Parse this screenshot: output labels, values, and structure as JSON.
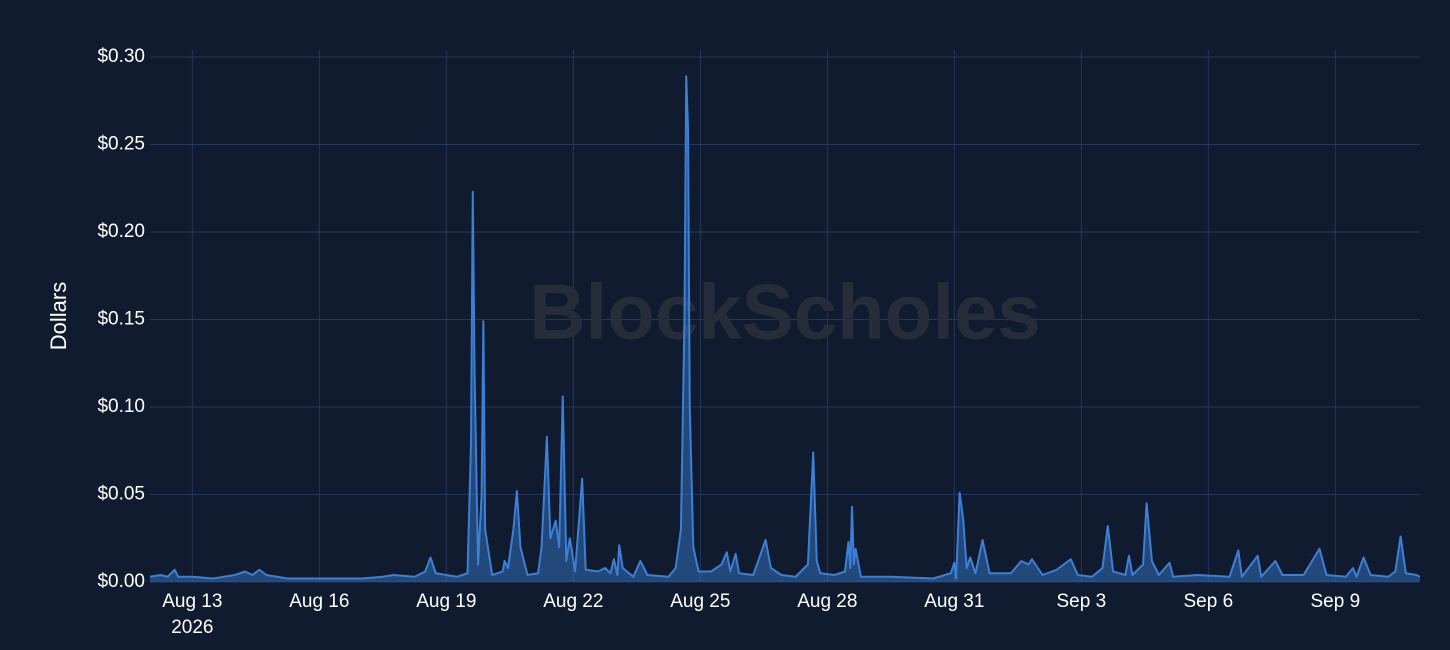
{
  "chart_data": {
    "type": "area",
    "watermark": "BlockScholes",
    "y_label": "Dollars",
    "color": "#3b80d6",
    "grid": true,
    "ylim": [
      0,
      0.3
    ],
    "yticks": [
      {
        "value": 0,
        "label": "$0.00"
      },
      {
        "value": 0.05,
        "label": "$0.05"
      },
      {
        "value": 0.1,
        "label": "$0.10"
      },
      {
        "value": 0.15,
        "label": "$0.15"
      },
      {
        "value": 0.2,
        "label": "$0.20"
      },
      {
        "value": 0.25,
        "label": "$0.25"
      },
      {
        "value": 0.3,
        "label": "$0.30"
      }
    ],
    "xlim": [
      "2026-08-12",
      "2026-09-11"
    ],
    "xticks": [
      {
        "value": "2026-08-13",
        "label": "Aug 13"
      },
      {
        "value": "2026-08-16",
        "label": "Aug 16"
      },
      {
        "value": "2026-08-19",
        "label": "Aug 19"
      },
      {
        "value": "2026-08-22",
        "label": "Aug 22"
      },
      {
        "value": "2026-08-25",
        "label": "Aug 25"
      },
      {
        "value": "2026-08-28",
        "label": "Aug 28"
      },
      {
        "value": "2026-08-31",
        "label": "Aug 31"
      },
      {
        "value": "2026-09-03",
        "label": "Sep 3"
      },
      {
        "value": "2026-09-06",
        "label": "Sep 6"
      },
      {
        "value": "2026-09-09",
        "label": "Sep 9"
      }
    ],
    "xtick_year": "2026",
    "x": [
      "2026-08-12T00:00",
      "2026-08-12T06:00",
      "2026-08-12T10:00",
      "2026-08-12T14:00",
      "2026-08-12T16:00",
      "2026-08-13T00:00",
      "2026-08-13T12:00",
      "2026-08-14T00:00",
      "2026-08-14T06:00",
      "2026-08-14T10:00",
      "2026-08-14T14:00",
      "2026-08-14T18:00",
      "2026-08-15T06:00",
      "2026-08-16T00:00",
      "2026-08-17T00:00",
      "2026-08-17T12:00",
      "2026-08-17T18:00",
      "2026-08-18T06:00",
      "2026-08-18T12:00",
      "2026-08-18T15:00",
      "2026-08-18T18:00",
      "2026-08-19T06:00",
      "2026-08-19T12:00",
      "2026-08-19T14:00",
      "2026-08-19T15:00",
      "2026-08-19T16:00",
      "2026-08-19T18:00",
      "2026-08-19T20:00",
      "2026-08-19T21:00",
      "2026-08-19T22:00",
      "2026-08-20T02:00",
      "2026-08-20T08:00",
      "2026-08-20T09:00",
      "2026-08-20T11:00",
      "2026-08-20T14:00",
      "2026-08-20T16:00",
      "2026-08-20T18:00",
      "2026-08-20T22:00",
      "2026-08-21T04:00",
      "2026-08-21T06:00",
      "2026-08-21T09:00",
      "2026-08-21T11:00",
      "2026-08-21T14:00",
      "2026-08-21T16:00",
      "2026-08-21T18:00",
      "2026-08-21T20:00",
      "2026-08-21T22:00",
      "2026-08-22T01:00",
      "2026-08-22T05:00",
      "2026-08-22T07:00",
      "2026-08-22T14:00",
      "2026-08-22T18:00",
      "2026-08-22T21:00",
      "2026-08-22T23:00",
      "2026-08-23T01:00",
      "2026-08-23T02:00",
      "2026-08-23T04:00",
      "2026-08-23T10:00",
      "2026-08-23T14:00",
      "2026-08-23T18:00",
      "2026-08-24T06:00",
      "2026-08-24T10:00",
      "2026-08-24T13:00",
      "2026-08-24T15:00",
      "2026-08-24T16:00",
      "2026-08-24T17:00",
      "2026-08-24T18:00",
      "2026-08-24T20:00",
      "2026-08-24T23:00",
      "2026-08-25T06:00",
      "2026-08-25T12:00",
      "2026-08-25T15:00",
      "2026-08-25T17:00",
      "2026-08-25T20:00",
      "2026-08-25T22:00",
      "2026-08-26T06:00",
      "2026-08-26T13:00",
      "2026-08-26T16:00",
      "2026-08-26T22:00",
      "2026-08-27T06:00",
      "2026-08-27T13:00",
      "2026-08-27T16:00",
      "2026-08-27T18:00",
      "2026-08-27T20:00",
      "2026-08-28T04:00",
      "2026-08-28T10:00",
      "2026-08-28T12:00",
      "2026-08-28T13:00",
      "2026-08-28T14:00",
      "2026-08-28T15:00",
      "2026-08-28T16:00",
      "2026-08-28T19:00",
      "2026-08-29T12:00",
      "2026-08-30T12:00",
      "2026-08-30T22:00",
      "2026-08-31T00:00",
      "2026-08-31T01:00",
      "2026-08-31T03:00",
      "2026-08-31T05:00",
      "2026-08-31T07:00",
      "2026-08-31T09:00",
      "2026-08-31T12:00",
      "2026-08-31T16:00",
      "2026-08-31T20:00",
      "2026-09-01T08:00",
      "2026-09-01T14:00",
      "2026-09-01T18:00",
      "2026-09-01T20:00",
      "2026-09-02T02:00",
      "2026-09-02T10:00",
      "2026-09-02T18:00",
      "2026-09-02T22:00",
      "2026-09-03T06:00",
      "2026-09-03T12:00",
      "2026-09-03T15:00",
      "2026-09-03T18:00",
      "2026-09-04T01:00",
      "2026-09-04T03:00",
      "2026-09-04T05:00",
      "2026-09-04T11:00",
      "2026-09-04T13:00",
      "2026-09-04T16:00",
      "2026-09-04T20:00",
      "2026-09-05T02:00",
      "2026-09-05T04:00",
      "2026-09-05T18:00",
      "2026-09-06T12:00",
      "2026-09-06T17:00",
      "2026-09-06T19:00",
      "2026-09-07T04:00",
      "2026-09-07T06:00",
      "2026-09-07T14:00",
      "2026-09-07T18:00",
      "2026-09-08T06:00",
      "2026-09-08T15:00",
      "2026-09-08T19:00",
      "2026-09-09T06:00",
      "2026-09-09T10:00",
      "2026-09-09T12:00",
      "2026-09-09T16:00",
      "2026-09-09T20:00",
      "2026-09-10T06:00",
      "2026-09-10T10:00",
      "2026-09-10T13:00",
      "2026-09-10T16:00",
      "2026-09-10T22:00",
      "2026-09-11T00:00"
    ],
    "values": [
      0.003,
      0.004,
      0.003,
      0.007,
      0.003,
      0.003,
      0.002,
      0.004,
      0.006,
      0.004,
      0.007,
      0.004,
      0.002,
      0.002,
      0.002,
      0.003,
      0.004,
      0.003,
      0.006,
      0.014,
      0.005,
      0.003,
      0.005,
      0.08,
      0.223,
      0.12,
      0.01,
      0.05,
      0.149,
      0.03,
      0.004,
      0.006,
      0.012,
      0.008,
      0.03,
      0.052,
      0.02,
      0.004,
      0.005,
      0.02,
      0.083,
      0.025,
      0.035,
      0.02,
      0.106,
      0.012,
      0.025,
      0.006,
      0.059,
      0.007,
      0.006,
      0.008,
      0.005,
      0.013,
      0.004,
      0.021,
      0.008,
      0.003,
      0.012,
      0.004,
      0.003,
      0.008,
      0.03,
      0.15,
      0.289,
      0.26,
      0.1,
      0.02,
      0.006,
      0.006,
      0.01,
      0.017,
      0.006,
      0.016,
      0.005,
      0.004,
      0.024,
      0.008,
      0.004,
      0.003,
      0.01,
      0.074,
      0.012,
      0.005,
      0.004,
      0.006,
      0.023,
      0.008,
      0.043,
      0.01,
      0.019,
      0.003,
      0.003,
      0.002,
      0.005,
      0.011,
      0.002,
      0.051,
      0.036,
      0.008,
      0.014,
      0.005,
      0.024,
      0.005,
      0.005,
      0.012,
      0.01,
      0.013,
      0.004,
      0.007,
      0.013,
      0.004,
      0.003,
      0.008,
      0.032,
      0.006,
      0.004,
      0.015,
      0.004,
      0.01,
      0.045,
      0.012,
      0.004,
      0.011,
      0.003,
      0.004,
      0.003,
      0.018,
      0.003,
      0.015,
      0.003,
      0.012,
      0.004,
      0.004,
      0.019,
      0.004,
      0.003,
      0.008,
      0.003,
      0.014,
      0.004,
      0.003,
      0.006,
      0.026,
      0.005,
      0.004,
      0.003
    ]
  }
}
